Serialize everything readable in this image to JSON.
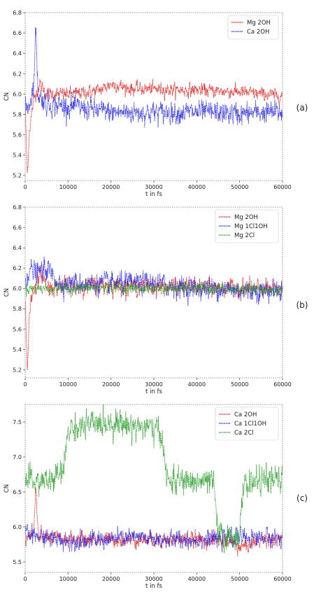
{
  "chart_data": [
    {
      "type": "line",
      "panel_label": "(a)",
      "xlabel": "t in fs",
      "ylabel": "CN",
      "xlim": [
        0,
        60000
      ],
      "ylim": [
        5.15,
        6.8
      ],
      "xticks": [
        0,
        10000,
        20000,
        30000,
        40000,
        50000,
        60000
      ],
      "yticks": [
        5.2,
        5.4,
        5.6,
        5.8,
        6.0,
        6.2,
        6.4,
        6.6,
        6.8
      ],
      "grid": false,
      "legend": "top-right",
      "series": [
        {
          "name": "Mg 2OH",
          "color": "#e8201e",
          "x": [
            0,
            500,
            1000,
            2000,
            3500,
            5000,
            10000,
            15000,
            18000,
            20000,
            22000,
            25000,
            30000,
            35000,
            40000,
            45000,
            50000,
            55000,
            60000
          ],
          "values": [
            5.9,
            5.18,
            5.65,
            5.95,
            6.1,
            6.0,
            6.0,
            6.02,
            6.05,
            6.1,
            6.08,
            6.05,
            6.05,
            6.04,
            6.04,
            6.03,
            6.02,
            6.0,
            5.98
          ]
        },
        {
          "name": "Ca 2OH",
          "color": "#2a2ae8",
          "x": [
            0,
            1000,
            2000,
            2500,
            3000,
            5000,
            10000,
            15000,
            20000,
            25000,
            30000,
            35000,
            40000,
            45000,
            50000,
            55000,
            60000
          ],
          "values": [
            5.85,
            5.9,
            6.1,
            6.65,
            6.0,
            5.9,
            5.88,
            5.85,
            5.82,
            5.82,
            5.82,
            5.82,
            5.82,
            5.82,
            5.8,
            5.82,
            5.82
          ]
        }
      ]
    },
    {
      "type": "line",
      "panel_label": "(b)",
      "xlabel": "t in fs",
      "ylabel": "CN",
      "xlim": [
        0,
        60000
      ],
      "ylim": [
        5.12,
        6.8
      ],
      "xticks": [
        0,
        10000,
        20000,
        30000,
        40000,
        50000,
        60000
      ],
      "yticks": [
        5.2,
        5.4,
        5.6,
        5.8,
        6.0,
        6.2,
        6.4,
        6.6,
        6.8
      ],
      "grid": false,
      "legend": "top-right",
      "series": [
        {
          "name": "Mg 2OH",
          "color": "#e8201e",
          "x": [
            0,
            500,
            1000,
            2000,
            4000,
            5000,
            10000,
            20000,
            30000,
            40000,
            50000,
            60000
          ],
          "values": [
            5.9,
            5.17,
            5.8,
            6.0,
            6.15,
            6.02,
            6.02,
            6.03,
            6.02,
            6.01,
            6.0,
            5.98
          ]
        },
        {
          "name": "Mg 1Cl1OH",
          "color": "#2a2ae8",
          "x": [
            0,
            1000,
            3000,
            5000,
            8000,
            10000,
            15000,
            20000,
            25000,
            30000,
            35000,
            40000,
            45000,
            50000,
            55000,
            60000
          ],
          "values": [
            6.1,
            6.18,
            6.15,
            6.2,
            6.05,
            6.05,
            6.05,
            6.05,
            6.05,
            6.05,
            6.02,
            6.0,
            6.0,
            5.98,
            5.98,
            5.98
          ]
        },
        {
          "name": "Mg 2Cl",
          "color": "#2e9e2e",
          "x": [
            0,
            10000,
            20000,
            30000,
            40000,
            50000,
            60000
          ],
          "values": [
            6.0,
            6.0,
            6.01,
            6.0,
            6.0,
            5.99,
            5.98
          ]
        }
      ]
    },
    {
      "type": "line",
      "panel_label": "(c)",
      "xlabel": "t in fs",
      "ylabel": "CN",
      "xlim": [
        0,
        60000
      ],
      "ylim": [
        5.35,
        7.75
      ],
      "xticks": [
        0,
        10000,
        20000,
        30000,
        40000,
        50000,
        60000
      ],
      "yticks": [
        5.5,
        6.0,
        6.5,
        7.0,
        7.5
      ],
      "grid": false,
      "legend": "top-right",
      "series": [
        {
          "name": "Ca 2OH",
          "color": "#e8201e",
          "x": [
            0,
            2000,
            2500,
            3000,
            4000,
            10000,
            20000,
            30000,
            40000,
            48000,
            50000,
            55000,
            60000
          ],
          "values": [
            5.85,
            5.9,
            6.6,
            5.85,
            5.85,
            5.82,
            5.82,
            5.82,
            5.82,
            5.8,
            5.7,
            5.82,
            5.85
          ]
        },
        {
          "name": "Ca 1Cl1OH",
          "color": "#2a2ae8",
          "x": [
            0,
            5000,
            10000,
            20000,
            25000,
            30000,
            35000,
            40000,
            45000,
            50000,
            55000,
            60000
          ],
          "values": [
            5.9,
            5.85,
            5.8,
            5.82,
            5.85,
            5.82,
            5.82,
            5.82,
            5.82,
            5.85,
            5.85,
            5.85
          ]
        },
        {
          "name": "Ca 2Cl",
          "color": "#2e9e2e",
          "x": [
            0,
            6000,
            7000,
            9000,
            10000,
            15000,
            20000,
            25000,
            30000,
            32000,
            33000,
            40000,
            44000,
            45000,
            48000,
            50000,
            51000,
            55000,
            60000
          ],
          "values": [
            6.65,
            6.65,
            6.7,
            6.8,
            7.4,
            7.45,
            7.5,
            7.45,
            7.4,
            7.3,
            6.65,
            6.65,
            6.62,
            5.85,
            5.85,
            5.9,
            6.6,
            6.68,
            6.65
          ]
        }
      ]
    }
  ]
}
